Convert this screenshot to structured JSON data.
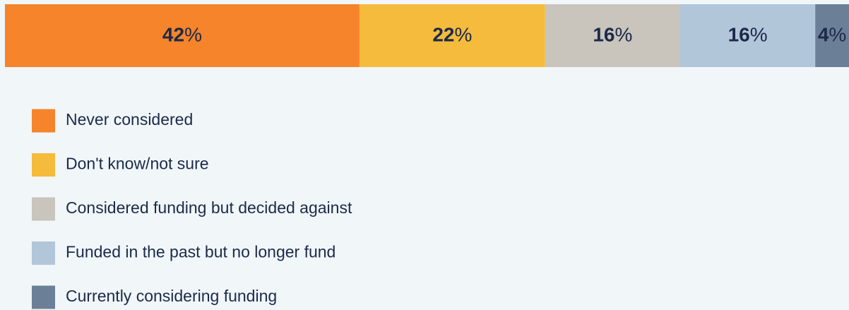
{
  "chart_data": {
    "type": "bar",
    "orientation": "horizontal",
    "stacked": true,
    "xlim": [
      0,
      100
    ],
    "series": [
      {
        "name": "Never considered",
        "color": "#f5842a",
        "values": [
          42
        ],
        "value_labels": [
          "42%"
        ]
      },
      {
        "name": "Don't know/not sure",
        "color": "#f5bb3c",
        "values": [
          22
        ],
        "value_labels": [
          "22%"
        ]
      },
      {
        "name": "Considered funding but decided against",
        "color": "#c9c4bc",
        "values": [
          16
        ],
        "value_labels": [
          "16%"
        ]
      },
      {
        "name": "Funded in the past but no longer fund",
        "color": "#b2c6d9",
        "values": [
          16
        ],
        "value_labels": [
          "16%"
        ]
      },
      {
        "name": "Currently considering funding",
        "color": "#6b8097",
        "values": [
          4
        ],
        "value_labels": [
          "4%"
        ]
      }
    ]
  }
}
